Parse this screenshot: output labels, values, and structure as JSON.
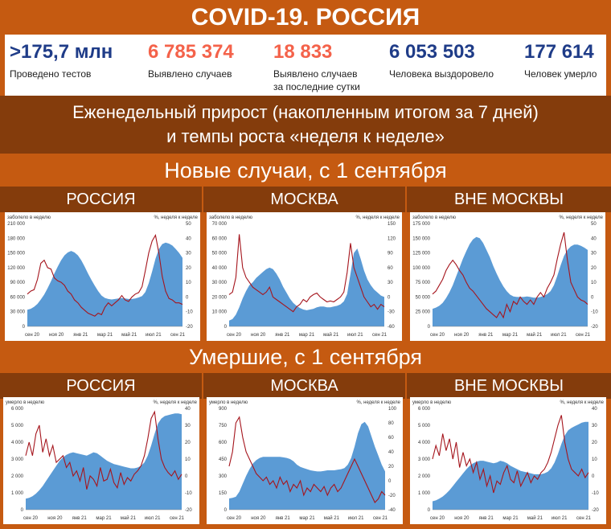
{
  "header": {
    "title": "COVID-19. РОССИЯ"
  },
  "stats": [
    {
      "value": ">175,7 млн",
      "label": "Проведено тестов",
      "color": "#1f3c88"
    },
    {
      "value": "6 785 374",
      "label": "Выявлено случаев",
      "color": "#f4624a"
    },
    {
      "value": "18 833",
      "label": "Выявлено случаев за последние сутки",
      "color": "#f4624a"
    },
    {
      "value": "6 053 503",
      "label": "Человека выздоровело",
      "color": "#1f3c88"
    },
    {
      "value": "177 614",
      "label": "Человек умерло",
      "color": "#1f3c88"
    }
  ],
  "subtitle": {
    "line1": "Еженедельный прирост (накопленным итогом за 7 дней)",
    "line2": "и темпы роста «неделя к неделе»"
  },
  "sections": {
    "cases": "Новые случаи, с 1 сентября",
    "deaths": "Умершие, с 1 сентября"
  },
  "region_labels": [
    "РОССИЯ",
    "МОСКВА",
    "ВНЕ МОСКВЫ"
  ],
  "colors": {
    "area": "#5b9bd5",
    "line": "#a5151d"
  },
  "chart_data": [
    {
      "type": "area",
      "id": "cases-russia",
      "ylabel": "заболело в неделю",
      "y2label": "%, неделя к неделе",
      "xticks": [
        "сен 20",
        "ноя 20",
        "янв 21",
        "мар 21",
        "май 21",
        "июл 21",
        "сен 21"
      ],
      "ylim": [
        0,
        210000
      ],
      "yticks": [
        0,
        30000,
        60000,
        90000,
        120000,
        150000,
        180000,
        210000
      ],
      "yticklabels": [
        "0",
        "30 000",
        "60 000",
        "90 000",
        "120 000",
        "150 000",
        "180 000",
        "210 000"
      ],
      "y2lim": [
        -20,
        50
      ],
      "y2ticks": [
        -20,
        -10,
        0,
        10,
        20,
        30,
        40,
        50
      ],
      "area": [
        34000,
        36000,
        40000,
        46000,
        55000,
        65000,
        78000,
        92000,
        108000,
        122000,
        135000,
        145000,
        151000,
        154000,
        151000,
        145000,
        135000,
        122000,
        108000,
        95000,
        83000,
        72000,
        63000,
        58000,
        56000,
        55000,
        56000,
        57000,
        58000,
        57000,
        56000,
        56000,
        57000,
        59000,
        62000,
        70000,
        88000,
        112000,
        138000,
        158000,
        168000,
        171000,
        169000,
        165000,
        158000,
        150000,
        140000
      ],
      "line": [
        2,
        4,
        5,
        12,
        23,
        25,
        20,
        19,
        13,
        11,
        10,
        8,
        4,
        2,
        -2,
        -4,
        -7,
        -9,
        -11,
        -12,
        -13,
        -11,
        -12,
        -7,
        -4,
        -6,
        -4,
        -2,
        1,
        -2,
        -3,
        0,
        2,
        3,
        7,
        18,
        30,
        38,
        42,
        30,
        14,
        4,
        -1,
        -2,
        -4,
        -4,
        -5
      ]
    },
    {
      "type": "area",
      "id": "cases-moscow",
      "ylabel": "заболело в неделю",
      "y2label": "%, неделя к неделе",
      "xticks": [
        "сен 20",
        "ноя 20",
        "янв 21",
        "мар 21",
        "май 21",
        "июл 21",
        "сен 21"
      ],
      "ylim": [
        0,
        70000
      ],
      "yticks": [
        0,
        10000,
        20000,
        30000,
        40000,
        50000,
        60000,
        70000
      ],
      "yticklabels": [
        "0",
        "10 000",
        "20 000",
        "30 000",
        "40 000",
        "50 000",
        "60 000",
        "70 000"
      ],
      "y2lim": [
        -60,
        150
      ],
      "y2ticks": [
        -60,
        -30,
        0,
        30,
        60,
        90,
        120,
        150
      ],
      "area": [
        4000,
        5000,
        8000,
        13000,
        19000,
        24000,
        28000,
        30000,
        33000,
        35000,
        37000,
        39000,
        40000,
        39000,
        36000,
        32000,
        27000,
        23000,
        19000,
        16000,
        14000,
        12500,
        11500,
        11000,
        11500,
        12000,
        13000,
        13500,
        13500,
        13000,
        13000,
        13500,
        14000,
        15000,
        17000,
        22000,
        36000,
        50000,
        53000,
        46000,
        38000,
        32000,
        28000,
        25000,
        23000,
        21000,
        20000
      ],
      "line": [
        5,
        10,
        40,
        128,
        60,
        40,
        30,
        20,
        15,
        10,
        5,
        10,
        20,
        0,
        -5,
        -10,
        -15,
        -20,
        -25,
        -30,
        -20,
        -15,
        -5,
        -10,
        0,
        5,
        8,
        0,
        -5,
        -10,
        -8,
        -10,
        -5,
        0,
        10,
        50,
        110,
        60,
        40,
        20,
        0,
        -10,
        -20,
        -15,
        -25,
        -15,
        -20
      ]
    },
    {
      "type": "area",
      "id": "cases-outside",
      "ylabel": "заболело в неделю",
      "y2label": "%, неделя к неделе",
      "xticks": [
        "сен 20",
        "ноя 20",
        "янв 21",
        "мар 21",
        "май 21",
        "июл 21",
        "сен 21"
      ],
      "ylim": [
        0,
        175000
      ],
      "yticks": [
        0,
        25000,
        50000,
        75000,
        100000,
        125000,
        150000,
        175000
      ],
      "yticklabels": [
        "0",
        "25 000",
        "50 000",
        "75 000",
        "100 000",
        "125 000",
        "150 000",
        "175 000"
      ],
      "y2lim": [
        -20,
        50
      ],
      "y2ticks": [
        -20,
        -10,
        0,
        10,
        20,
        30,
        40,
        50
      ],
      "area": [
        30000,
        32000,
        35000,
        40000,
        48000,
        58000,
        70000,
        85000,
        100000,
        115000,
        128000,
        140000,
        148000,
        152000,
        150000,
        142000,
        130000,
        118000,
        103000,
        90000,
        78000,
        68000,
        60000,
        54000,
        51000,
        50000,
        50000,
        50000,
        51000,
        50000,
        49000,
        49000,
        50000,
        52000,
        55000,
        60000,
        70000,
        86000,
        104000,
        120000,
        130000,
        136000,
        139000,
        139000,
        137000,
        134000,
        130000
      ],
      "line": [
        2,
        4,
        8,
        12,
        18,
        22,
        25,
        22,
        18,
        15,
        10,
        6,
        4,
        1,
        -2,
        -5,
        -8,
        -10,
        -12,
        -14,
        -10,
        -14,
        -5,
        -10,
        -3,
        -5,
        0,
        -3,
        -5,
        -2,
        -5,
        0,
        3,
        0,
        6,
        10,
        15,
        26,
        36,
        44,
        25,
        10,
        5,
        0,
        -2,
        -3,
        -5
      ]
    },
    {
      "type": "area",
      "id": "deaths-russia",
      "ylabel": "умерло в неделю",
      "y2label": "%, неделя к неделе",
      "xticks": [
        "сен 20",
        "ноя 20",
        "янв 21",
        "мар 21",
        "май 21",
        "июл 21",
        "сен 21"
      ],
      "ylim": [
        0,
        6000
      ],
      "yticks": [
        0,
        1000,
        2000,
        3000,
        4000,
        5000,
        6000
      ],
      "yticklabels": [
        "0",
        "1 000",
        "2 000",
        "3 000",
        "4 000",
        "5 000",
        "6 000"
      ],
      "y2lim": [
        -20,
        40
      ],
      "y2ticks": [
        -20,
        -10,
        0,
        10,
        20,
        30,
        40
      ],
      "area": [
        650,
        700,
        800,
        950,
        1150,
        1400,
        1700,
        2000,
        2300,
        2600,
        2900,
        3100,
        3250,
        3350,
        3400,
        3350,
        3300,
        3250,
        3200,
        3300,
        3400,
        3350,
        3200,
        3050,
        2900,
        2800,
        2700,
        2650,
        2600,
        2550,
        2500,
        2450,
        2450,
        2500,
        2600,
        2800,
        3200,
        3800,
        4500,
        5100,
        5400,
        5550,
        5600,
        5650,
        5700,
        5700,
        5650
      ],
      "line": [
        12,
        20,
        12,
        25,
        30,
        14,
        22,
        12,
        18,
        8,
        10,
        12,
        5,
        8,
        0,
        3,
        -3,
        5,
        -8,
        0,
        -2,
        -6,
        5,
        -3,
        -2,
        4,
        -4,
        -7,
        2,
        -5,
        -1,
        -3,
        1,
        3,
        6,
        12,
        22,
        34,
        38,
        22,
        10,
        5,
        2,
        0,
        3,
        -2,
        1
      ]
    },
    {
      "type": "area",
      "id": "deaths-moscow",
      "ylabel": "умерло в неделю",
      "y2label": "%, неделя к неделе",
      "xticks": [
        "сен 20",
        "ноя 20",
        "янв 21",
        "мар 21",
        "май 21",
        "июл 21",
        "сен 21"
      ],
      "ylim": [
        0,
        900
      ],
      "yticks": [
        0,
        150,
        300,
        450,
        600,
        750,
        900
      ],
      "yticklabels": [
        "0",
        "150",
        "300",
        "450",
        "600",
        "750",
        "900"
      ],
      "y2lim": [
        -40,
        100
      ],
      "y2ticks": [
        -40,
        -20,
        0,
        20,
        40,
        60,
        80,
        100
      ],
      "area": [
        100,
        105,
        115,
        160,
        230,
        300,
        360,
        410,
        440,
        460,
        470,
        470,
        470,
        470,
        470,
        470,
        465,
        460,
        450,
        430,
        400,
        380,
        370,
        360,
        350,
        345,
        340,
        340,
        345,
        350,
        350,
        350,
        355,
        360,
        370,
        400,
        460,
        560,
        680,
        760,
        780,
        740,
        650,
        560,
        480,
        400,
        340
      ],
      "line": [
        20,
        40,
        80,
        88,
        60,
        40,
        30,
        20,
        10,
        5,
        0,
        5,
        -5,
        0,
        -10,
        5,
        -5,
        0,
        -15,
        -5,
        -10,
        0,
        -20,
        -10,
        -15,
        -5,
        -10,
        -15,
        -8,
        -20,
        -10,
        -5,
        -15,
        -10,
        0,
        10,
        20,
        30,
        20,
        10,
        0,
        -10,
        -20,
        -30,
        -25,
        -15,
        -20
      ]
    },
    {
      "type": "area",
      "id": "deaths-outside",
      "ylabel": "умерло в неделю",
      "y2label": "%, неделя к неделе",
      "xticks": [
        "сен 20",
        "ноя 20",
        "янв 21",
        "мар 21",
        "май 21",
        "июл 21",
        "сен 21"
      ],
      "ylim": [
        0,
        6000
      ],
      "yticks": [
        0,
        1000,
        2000,
        3000,
        4000,
        5000,
        6000
      ],
      "yticklabels": [
        "0",
        "1 000",
        "2 000",
        "3 000",
        "4 000",
        "5 000",
        "6 000"
      ],
      "y2lim": [
        -20,
        40
      ],
      "y2ticks": [
        -20,
        -10,
        0,
        10,
        20,
        30,
        40
      ],
      "area": [
        500,
        550,
        650,
        780,
        950,
        1150,
        1400,
        1650,
        1900,
        2150,
        2400,
        2600,
        2750,
        2850,
        2900,
        2900,
        2850,
        2800,
        2750,
        2800,
        2900,
        2850,
        2750,
        2600,
        2500,
        2400,
        2300,
        2250,
        2200,
        2150,
        2100,
        2100,
        2100,
        2150,
        2250,
        2450,
        2800,
        3300,
        3900,
        4400,
        4700,
        4850,
        4950,
        5050,
        5150,
        5200,
        5200
      ],
      "line": [
        10,
        18,
        12,
        25,
        15,
        22,
        10,
        20,
        5,
        14,
        6,
        10,
        2,
        8,
        -2,
        4,
        -6,
        0,
        -10,
        -3,
        -5,
        2,
        6,
        -2,
        -4,
        3,
        -6,
        -2,
        2,
        -4,
        0,
        -2,
        2,
        4,
        8,
        14,
        22,
        30,
        36,
        20,
        10,
        4,
        2,
        0,
        4,
        -1,
        2
      ]
    }
  ]
}
